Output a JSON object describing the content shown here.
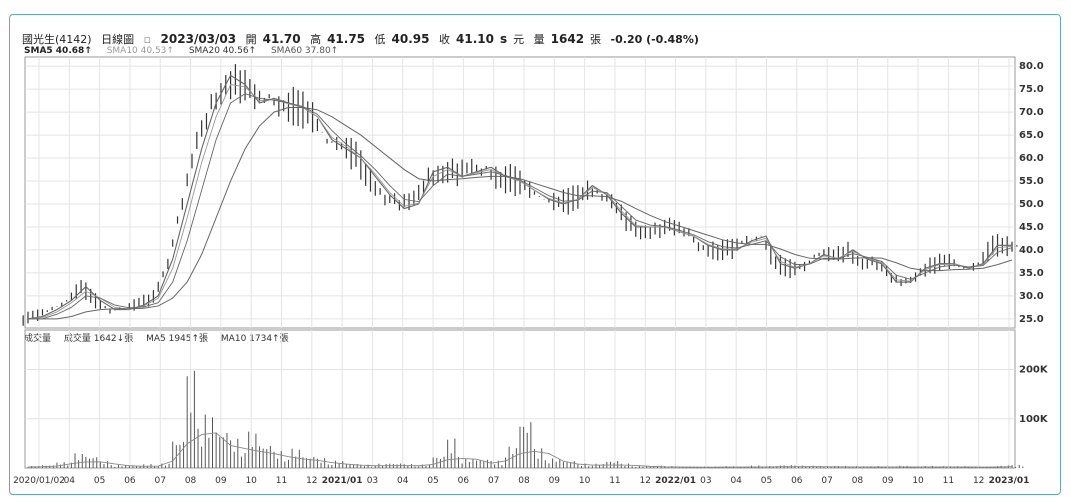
{
  "header": {
    "name": "國光生(4142)",
    "period": "日線圖",
    "date": "2023/03/03",
    "open_label": "開",
    "open": "41.70",
    "high_label": "高",
    "high": "41.75",
    "low_label": "低",
    "low": "40.95",
    "close_label": "收",
    "close": "41.10",
    "unit_s": "s",
    "unit_yuan": "元",
    "vol_label": "量",
    "vol": "1642",
    "vol_unit": "張",
    "change": "-0.20 (-0.48%)"
  },
  "sma_legend": [
    {
      "label": "SMA5 40.68↑",
      "color": "#222222"
    },
    {
      "label": "SMA10 40.53↑",
      "color": "#9a9a9a"
    },
    {
      "label": "SMA20 40.56↑",
      "color": "#333333"
    },
    {
      "label": "SMA60 37.80↑",
      "color": "#555555"
    }
  ],
  "volume_legend": {
    "title": "成交量",
    "current": "成交量 1642↓張",
    "ma5": "MA5 1945↑張",
    "ma10": "MA10 1734↑張"
  },
  "colors": {
    "frame": "#6aa6b4",
    "grid": "#e4e4e4",
    "candle": "#333333",
    "sma": "#666666",
    "volume": "#555555"
  },
  "chart_data": [
    {
      "type": "line",
      "title": "",
      "y_ticks": [
        "80.0",
        "75.0",
        "70.0",
        "65.0",
        "60.0",
        "55.0",
        "50.0",
        "45.0",
        "40.0",
        "35.0",
        "30.0",
        "25.0"
      ],
      "ylim": [
        23,
        82
      ],
      "x_ticks": [
        "2020/01/02",
        "04",
        "05",
        "06",
        "07",
        "08",
        "09",
        "10",
        "11",
        "12",
        "2021/01",
        "03",
        "04",
        "05",
        "06",
        "07",
        "08",
        "09",
        "10",
        "11",
        "12",
        "2022/01",
        "03",
        "04",
        "05",
        "06",
        "07",
        "08",
        "09",
        "10",
        "11",
        "12",
        "2023/01"
      ],
      "x_tick_bold": [
        false,
        false,
        false,
        false,
        false,
        false,
        false,
        false,
        false,
        false,
        true,
        false,
        false,
        false,
        false,
        false,
        false,
        false,
        false,
        false,
        false,
        true,
        false,
        false,
        false,
        false,
        false,
        false,
        false,
        false,
        false,
        false,
        true
      ],
      "series": [
        {
          "name": "SMA5",
          "values": [
            25,
            25.5,
            27,
            29,
            32,
            29,
            27,
            27,
            28,
            30,
            38,
            50,
            62,
            72,
            78,
            76,
            72,
            73,
            72,
            71,
            69,
            64,
            62,
            60,
            56,
            52,
            49,
            50,
            57,
            58,
            56,
            57,
            58,
            56,
            55,
            53,
            51,
            50,
            51,
            54,
            52,
            48,
            45,
            45,
            45,
            44,
            43,
            41,
            40,
            40,
            42,
            43,
            37,
            36,
            37,
            39,
            38,
            40,
            38,
            37,
            33,
            33,
            36,
            37,
            37,
            36,
            37,
            41,
            41
          ]
        },
        {
          "name": "SMA10",
          "values": [
            25,
            25.3,
            26.5,
            28.5,
            31,
            29.5,
            27.5,
            27,
            27.8,
            29.5,
            36,
            47,
            59,
            69,
            76,
            75.5,
            72.5,
            72.8,
            71.8,
            71,
            69,
            64.5,
            62.5,
            60,
            56.5,
            52.5,
            49.5,
            50.2,
            56,
            57.5,
            56,
            56.8,
            57.5,
            56,
            55,
            53,
            51.2,
            50.2,
            51,
            53.6,
            52.2,
            48.5,
            45.3,
            45,
            45,
            44,
            43,
            41.2,
            40.2,
            40.2,
            41.7,
            42.5,
            37.5,
            36.2,
            37,
            38.7,
            38.2,
            39.7,
            38.2,
            37.2,
            33.5,
            33.2,
            35.7,
            36.8,
            36.9,
            36.2,
            36.8,
            40.5,
            40.8
          ]
        },
        {
          "name": "SMA20",
          "values": [
            25,
            25,
            26,
            27.5,
            30,
            29.5,
            28,
            27.4,
            27.6,
            28.5,
            33,
            42,
            53,
            64,
            72,
            74,
            73,
            72.6,
            72,
            71.2,
            69.5,
            66,
            63,
            60.5,
            57.5,
            54,
            51,
            50.5,
            54,
            56.5,
            56,
            56.5,
            57,
            56.2,
            55.2,
            53.5,
            51.8,
            50.6,
            50.8,
            52.8,
            52.5,
            49.5,
            46.5,
            45.4,
            45.1,
            44.3,
            43.3,
            41.8,
            40.7,
            40.4,
            41.2,
            42,
            38.5,
            36.8,
            36.9,
            38.2,
            38.1,
            39.2,
            38.4,
            37.5,
            34.5,
            33.6,
            35,
            36.3,
            36.7,
            36.3,
            36.6,
            39.5,
            40.5
          ]
        },
        {
          "name": "SMA60",
          "values": [
            25,
            25,
            25,
            25.5,
            26.5,
            27,
            27.2,
            27.2,
            27.3,
            27.8,
            29.5,
            33,
            39,
            47,
            55,
            62,
            67,
            70,
            71,
            71,
            70.5,
            69,
            67,
            65,
            62.5,
            60,
            57.5,
            55.5,
            55,
            55.3,
            55.5,
            55.8,
            56,
            56,
            55.5,
            54.5,
            53.5,
            52.5,
            51.8,
            51.8,
            51.6,
            50.6,
            49,
            47.5,
            46.2,
            45.2,
            44.2,
            43.2,
            42.2,
            41.5,
            41.2,
            41.2,
            40.2,
            39,
            38.2,
            38,
            38,
            38.2,
            38.3,
            38.2,
            37.2,
            36,
            35.5,
            35.5,
            35.7,
            35.8,
            36,
            36.8,
            37.8
          ]
        }
      ]
    },
    {
      "type": "bar",
      "title": "成交量",
      "y_ticks": [
        "200K",
        "100K"
      ],
      "ylim": [
        0,
        260000
      ],
      "x_ticks": [
        "2020/01/02",
        "04",
        "05",
        "06",
        "07",
        "08",
        "09",
        "10",
        "11",
        "12",
        "2021/01",
        "03",
        "04",
        "05",
        "06",
        "07",
        "08",
        "09",
        "10",
        "11",
        "12",
        "2022/01",
        "03",
        "04",
        "05",
        "06",
        "07",
        "08",
        "09",
        "10",
        "11",
        "12",
        "2023/01"
      ],
      "values": [
        4000,
        6000,
        12000,
        30000,
        25000,
        14000,
        6000,
        5000,
        8000,
        9000,
        60000,
        200000,
        110000,
        80000,
        60000,
        75000,
        50000,
        35000,
        40000,
        25000,
        20000,
        15000,
        9000,
        7000,
        9000,
        10000,
        8000,
        7000,
        25000,
        60000,
        20000,
        18000,
        15000,
        45000,
        100000,
        40000,
        20000,
        15000,
        9000,
        9000,
        15000,
        9000,
        4000,
        5000,
        4000,
        3000,
        3000,
        3000,
        4000,
        3000,
        5000,
        4000,
        6000,
        5000,
        5000,
        4000,
        4000,
        4000,
        4000,
        3000,
        5000,
        3000,
        4000,
        4000,
        4000,
        3000,
        3000,
        5000,
        6000
      ]
    }
  ]
}
